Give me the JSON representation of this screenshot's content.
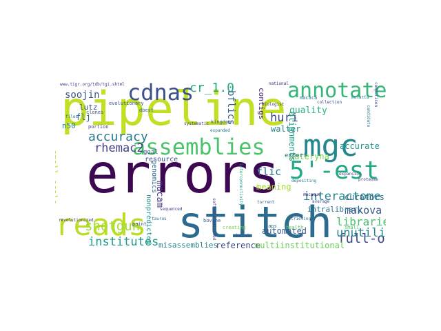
{
  "cloud": {
    "colors": {
      "pipeline": "#c2df23",
      "errors": "#3e0751",
      "stitch": "#2c6b8e",
      "reads": "#bade28",
      "mgc": "#24878e",
      "assemblies": "#4cc26c",
      "annotated": "#35b779",
      "five_est": "#23a983",
      "cdnas": "#3b518b",
      "full_orf": "#3e4989",
      "shotgun": "#a2da37",
      "interactome": "#25848e",
      "institutes": "#1f998a",
      "libraries": "#4ac16d",
      "unutilized": "#25858e",
      "accuracy": "#2a788e",
      "rhemac2": "#404387",
      "huri": "#3f4889",
      "bflics": "#355f8d",
      "cr10": "#23a983",
      "soojin": "#3a548c",
      "makova": "#38588c",
      "kateryna": "#7ad151",
      "flic": "#2e6e8e",
      "macam": "#443b84",
      "automated": "#365d8d",
      "small_scale": "#b8de29",
      "reference": "#414487",
      "misassemblies": "#26828e",
      "multiinstitutional": "#6ccd5a",
      "quality": "#2db27d",
      "walter": "#24868e",
      "lutz": "#3d4e8a",
      "contigs": "#482374",
      "curators": "#2e6f8e",
      "alignments": "#1fa088",
      "intralibrary": "#2c718e",
      "flj": "#31688e",
      "n50": "#26818e",
      "genomics": "#2f6b8e",
      "nonpredicted": "#1f948c",
      "resource": "#3c4f8a",
      "meaning": "#a8db34",
      "accurate": "#1f988b",
      "goal": "#3a538b",
      "expert": "#2a768e",
      "small": "#55c667"
    }
  },
  "words": {
    "pipeline": "pipeline",
    "errors": "errors",
    "stitch": "stitch",
    "reads": "reads",
    "mgc": "mgc",
    "assemblies": "assemblies",
    "annotated": "annotated",
    "five_est": "5'-est",
    "cdnas": "cdnas",
    "full_orf": "full-orf",
    "shotgun": "shotgun",
    "interactome": "interactome",
    "institutes": "institutes",
    "libraries": "libraries",
    "unutilized": "unutilized",
    "accuracy": "accuracy",
    "rhemac2": "rhemac2",
    "huri": "huri",
    "bflics": "bflics",
    "cr10": "cr_1.0",
    "soojin": "soojin",
    "makova": "makova",
    "kateryna": "kateryna",
    "flic": "flic",
    "macam": "macam",
    "automated": "automated",
    "small_scale": "small-scale",
    "reference": "reference",
    "misassemblies": "misassemblies",
    "multiinstitutional": "multiinstitutional",
    "quality": "quality",
    "walter": "walter",
    "lutz": "lutz",
    "contigs": "contigs",
    "curators": "curators",
    "alignments": "alignments",
    "intralibrary": "intralibrary",
    "flj": "flj",
    "n50": "n50",
    "genomics": "genomics",
    "nonpredicted": "nonpredicted",
    "resource": "resource",
    "meaning": "meaning",
    "accurate": "accurate",
    "goal": "goal",
    "expert": "expert",
    "url": "www.tigr.org/tdb/tgi.shtml",
    "evolutionary": "evolutionary",
    "kingdom": "kingdom",
    "macaca": "macaca",
    "collection": "collection",
    "mulatta": "mulatta",
    "national": "national",
    "clones": "clones",
    "dbest": "dbest",
    "portion": "portion",
    "files": "files",
    "biologist": "biologist",
    "systematic": "systematic",
    "expanded": "expanded",
    "sequenced": "sequenced",
    "proteome": "proteome",
    "paint": "paint",
    "taurus": "taurus",
    "bovine": "bovine",
    "creating": "creating",
    "gaps": "gaps",
    "health": "health",
    "retrieving": "retrieving",
    "revolutionized": "revolutionized",
    "kozak": "kozak",
    "average": "average",
    "depositing": "depositing",
    "expansion": "expansion",
    "macaque": "macaque",
    "torrent": "torrent",
    "interconnectivity": "interconnectivity",
    "software_assisted": "software-assisted",
    "comparison": "comparison",
    "candidate": "candidate",
    "small": "small"
  }
}
